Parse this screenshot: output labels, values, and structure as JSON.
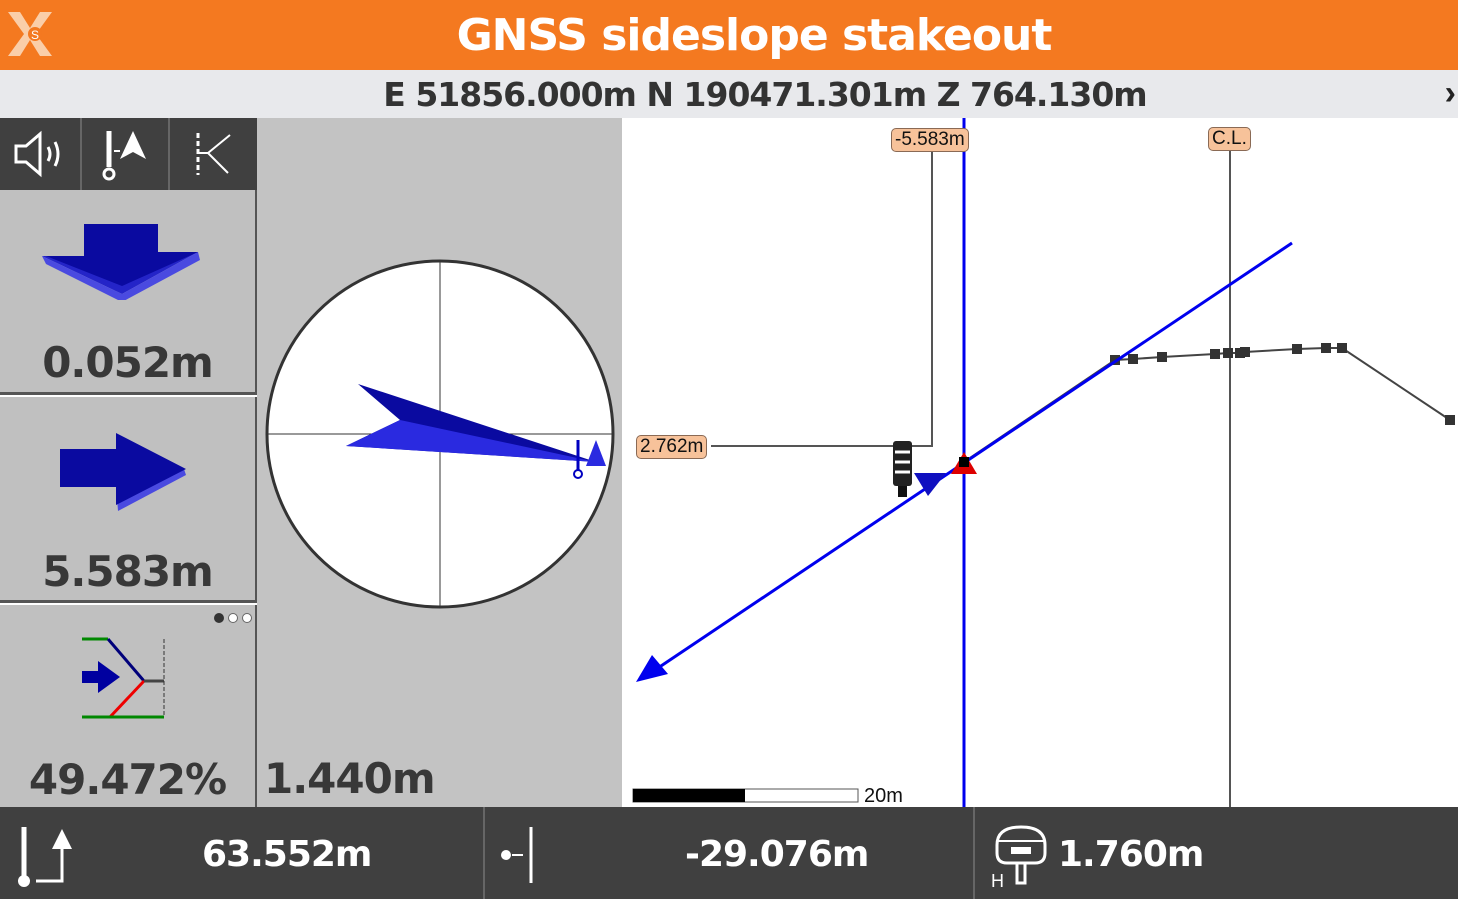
{
  "header": {
    "title": "GNSS sideslope stakeout",
    "logo": "x-site-logo",
    "logo_letter": "S"
  },
  "coords": {
    "text": "E 51856.000m N 190471.301m Z 764.130m",
    "chevron": "›"
  },
  "toolbar": {
    "icons": [
      "speaker-icon",
      "pole-north-icon",
      "sideslope-hinge-icon"
    ]
  },
  "panels": [
    {
      "icon": "arrow-down-icon",
      "value": "0.052m"
    },
    {
      "icon": "arrow-right-icon",
      "value": "5.583m"
    },
    {
      "icon": "slope-icon",
      "value": "49.472%",
      "page_dots": {
        "count": 3,
        "active": 0
      }
    }
  ],
  "compass": {
    "value": "1.440m"
  },
  "plan": {
    "offset_label": "-5.583m",
    "distance_label": "2.762m",
    "centerline_label": "C.L.",
    "scale_label": "20m",
    "colors": {
      "design_line": "#0000ee",
      "profile": "#444444",
      "label_bg": "#f7c29a",
      "target": "#dd0000"
    }
  },
  "bottom": [
    {
      "icon": "height-diff-icon",
      "value": "63.552m"
    },
    {
      "icon": "offset-from-line-icon",
      "value": "-29.076m"
    },
    {
      "icon": "antenna-height-icon",
      "value": "1.760m"
    }
  ],
  "colors": {
    "header": "#f47920",
    "panel": "#c0c0c0",
    "toolbar": "#404040"
  }
}
